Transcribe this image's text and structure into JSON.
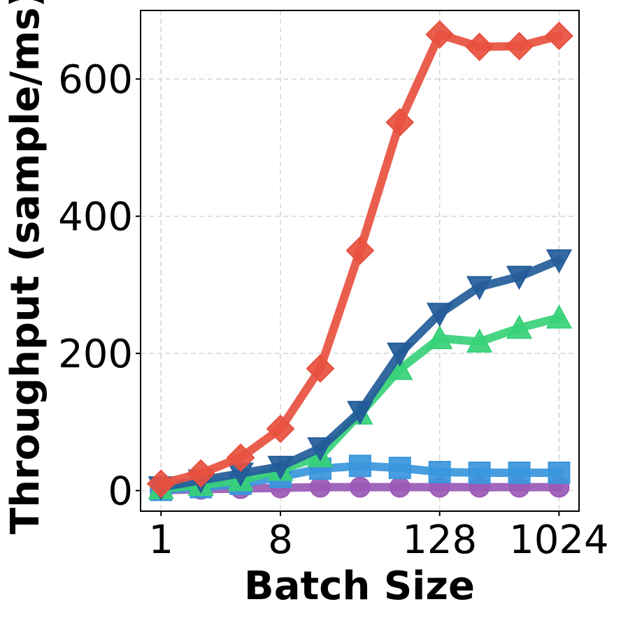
{
  "chart_data": {
    "type": "line",
    "xlabel": "Batch Size",
    "ylabel": "Throughput (sample/ms)",
    "x_scale": "log2",
    "xlim": [
      0.7,
      1450
    ],
    "ylim": [
      -30,
      700
    ],
    "x_ticks": [
      1,
      8,
      128,
      1024
    ],
    "x_tick_labels": [
      "1",
      "8",
      "128",
      "1024"
    ],
    "y_ticks": [
      0,
      200,
      400,
      600
    ],
    "y_tick_labels": [
      "0",
      "200",
      "400",
      "600"
    ],
    "grid": true,
    "x": [
      1,
      2,
      4,
      8,
      16,
      32,
      64,
      128,
      256,
      512,
      1024
    ],
    "series": [
      {
        "color": "#e8503f",
        "marker": "diamond",
        "values": [
          10,
          25,
          48,
          90,
          178,
          350,
          537,
          665,
          647,
          648,
          663
        ]
      },
      {
        "color": "#235c99",
        "marker": "triangle-down",
        "values": [
          5,
          15,
          25,
          35,
          62,
          115,
          200,
          258,
          297,
          312,
          336
        ]
      },
      {
        "color": "#37d178",
        "marker": "triangle-up",
        "values": [
          3,
          8,
          15,
          30,
          50,
          112,
          177,
          222,
          217,
          237,
          252
        ]
      },
      {
        "color": "#3a96dc",
        "marker": "square",
        "values": [
          1,
          5,
          10,
          20,
          32,
          36,
          33,
          27,
          26,
          26,
          26
        ]
      },
      {
        "color": "#9a5ab6",
        "marker": "circle",
        "values": [
          0.5,
          2,
          3,
          4,
          5,
          5,
          5,
          5,
          5,
          5,
          5
        ]
      }
    ]
  }
}
